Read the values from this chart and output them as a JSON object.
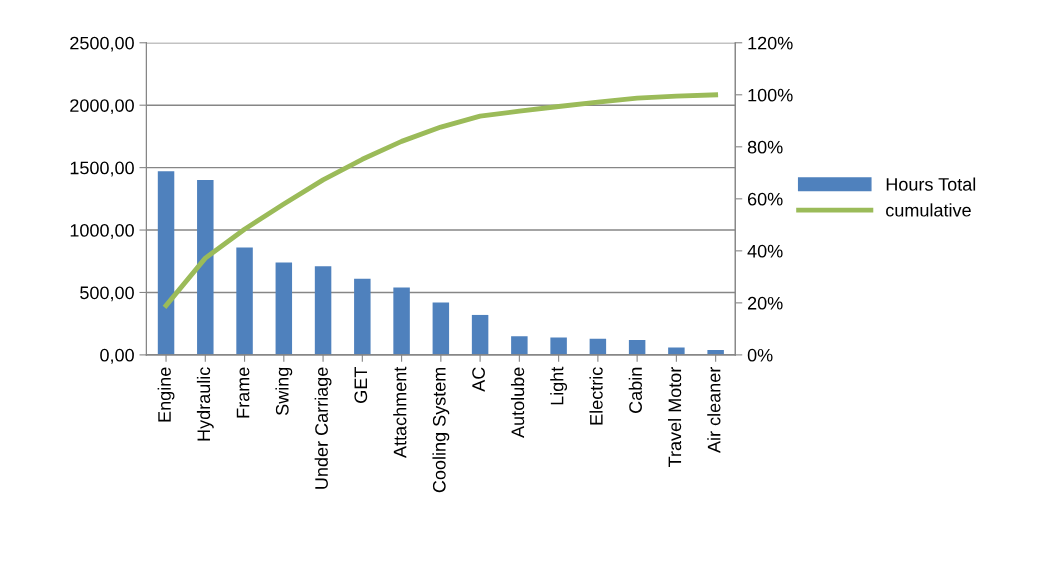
{
  "chart_data": {
    "type": "bar",
    "categories": [
      "Engine",
      "Hydraulic",
      "Frame",
      "Swing",
      "Under Carriage",
      "GET",
      "Attachment",
      "Cooling System",
      "AC",
      "Autolube",
      "Light",
      "Electric",
      "Cabin",
      "Travel Motor",
      "Air cleaner"
    ],
    "series": [
      {
        "name": "Hours Total",
        "color": "#4f81bd",
        "values": [
          1470,
          1400,
          860,
          740,
          710,
          610,
          540,
          420,
          320,
          150,
          140,
          130,
          120,
          60,
          40
        ]
      },
      {
        "name": "cumulative",
        "type": "line",
        "axis": "y2",
        "color": "#9bbb59",
        "marker": "none",
        "line_style": "solid",
        "values": [
          19.0,
          37.2,
          48.3,
          58.0,
          67.3,
          75.2,
          82.1,
          87.6,
          91.8,
          93.7,
          95.5,
          97.2,
          98.7,
          99.5,
          100
        ]
      }
    ],
    "ylim": [
      0,
      2500
    ],
    "yticks": [
      {
        "value": 0,
        "label": "0,00"
      },
      {
        "value": 500,
        "label": "500,00"
      },
      {
        "value": 1000,
        "label": "1000,00"
      },
      {
        "value": 1500,
        "label": "1500,00"
      },
      {
        "value": 2000,
        "label": "2000,00"
      },
      {
        "value": 2500,
        "label": "2500,00"
      }
    ],
    "y2lim": [
      0,
      120
    ],
    "y2ticks": [
      {
        "value": 0,
        "label": "0%"
      },
      {
        "value": 20,
        "label": "20%"
      },
      {
        "value": 40,
        "label": "40%"
      },
      {
        "value": 60,
        "label": "60%"
      },
      {
        "value": 80,
        "label": "80%"
      },
      {
        "value": 100,
        "label": "100%"
      },
      {
        "value": 120,
        "label": "120%"
      }
    ],
    "grid": "y",
    "legend": "right"
  }
}
